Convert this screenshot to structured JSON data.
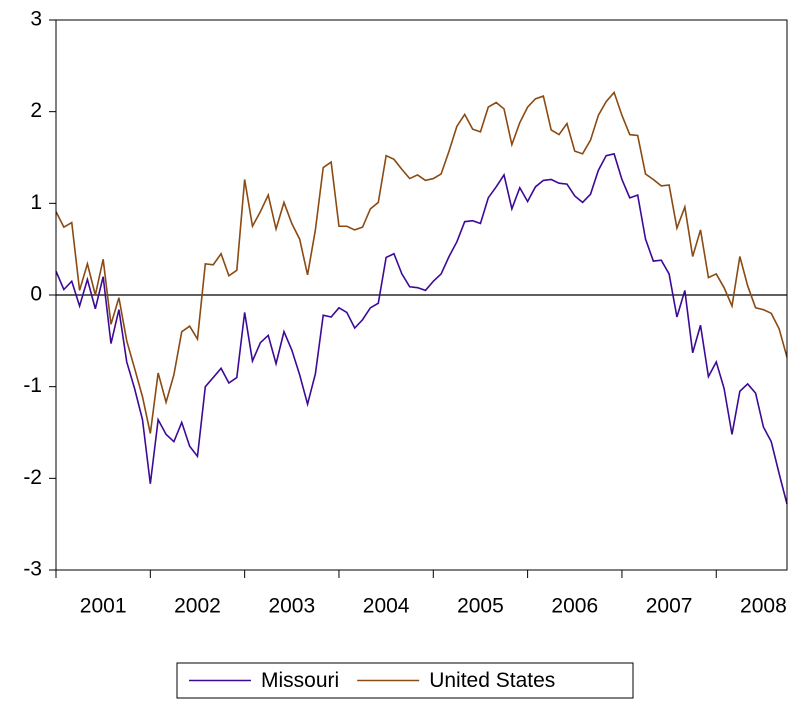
{
  "chart_data": {
    "type": "line",
    "x": [
      2001,
      2001.083,
      2001.167,
      2001.25,
      2001.333,
      2001.417,
      2001.5,
      2001.583,
      2001.667,
      2001.75,
      2001.833,
      2001.917,
      2002,
      2002.083,
      2002.167,
      2002.25,
      2002.333,
      2002.417,
      2002.5,
      2002.583,
      2002.667,
      2002.75,
      2002.833,
      2002.917,
      2003,
      2003.083,
      2003.167,
      2003.25,
      2003.333,
      2003.417,
      2003.5,
      2003.583,
      2003.667,
      2003.75,
      2003.833,
      2003.917,
      2004,
      2004.083,
      2004.167,
      2004.25,
      2004.333,
      2004.417,
      2004.5,
      2004.583,
      2004.667,
      2004.75,
      2004.833,
      2004.917,
      2005,
      2005.083,
      2005.167,
      2005.25,
      2005.333,
      2005.417,
      2005.5,
      2005.583,
      2005.667,
      2005.75,
      2005.833,
      2005.917,
      2006,
      2006.083,
      2006.167,
      2006.25,
      2006.333,
      2006.417,
      2006.5,
      2006.583,
      2006.667,
      2006.75,
      2006.833,
      2006.917,
      2007,
      2007.083,
      2007.167,
      2007.25,
      2007.333,
      2007.417,
      2007.5,
      2007.583,
      2007.667,
      2007.75,
      2007.833,
      2007.917,
      2008,
      2008.083,
      2008.167,
      2008.25,
      2008.333,
      2008.417,
      2008.5,
      2008.583,
      2008.667,
      2008.75
    ],
    "series": [
      {
        "name": "Missouri",
        "color": "#3c0a96",
        "values": [
          0.26,
          0.06,
          0.15,
          -0.12,
          0.17,
          -0.15,
          0.2,
          -0.53,
          -0.16,
          -0.73,
          -1.02,
          -1.36,
          -2.06,
          -1.36,
          -1.52,
          -1.6,
          -1.39,
          -1.65,
          -1.76,
          -1.0,
          -0.9,
          -0.8,
          -0.96,
          -0.9,
          -0.19,
          -0.72,
          -0.52,
          -0.44,
          -0.75,
          -0.4,
          -0.6,
          -0.87,
          -1.19,
          -0.86,
          -0.22,
          -0.24,
          -0.14,
          -0.19,
          -0.36,
          -0.27,
          -0.14,
          -0.09,
          0.41,
          0.45,
          0.23,
          0.09,
          0.08,
          0.05,
          0.15,
          0.23,
          0.42,
          0.58,
          0.8,
          0.81,
          0.78,
          1.06,
          1.18,
          1.31,
          0.94,
          1.17,
          1.02,
          1.18,
          1.25,
          1.26,
          1.22,
          1.21,
          1.08,
          1.01,
          1.1,
          1.36,
          1.52,
          1.54,
          1.26,
          1.06,
          1.09,
          0.61,
          0.37,
          0.38,
          0.23,
          -0.24,
          0.05,
          -0.63,
          -0.33,
          -0.89,
          -0.73,
          -1.02,
          -1.52,
          -1.05,
          -0.97,
          -1.07,
          -1.44,
          -1.6,
          -1.95,
          -2.28
        ]
      },
      {
        "name": "United States",
        "color": "#8b4a12",
        "values": [
          0.91,
          0.74,
          0.79,
          0.05,
          0.34,
          0.0,
          0.39,
          -0.32,
          -0.03,
          -0.5,
          -0.8,
          -1.11,
          -1.51,
          -0.85,
          -1.17,
          -0.87,
          -0.4,
          -0.34,
          -0.48,
          0.34,
          0.33,
          0.45,
          0.21,
          0.27,
          1.26,
          0.75,
          0.91,
          1.09,
          0.72,
          1.01,
          0.78,
          0.61,
          0.22,
          0.71,
          1.39,
          1.45,
          0.75,
          0.75,
          0.71,
          0.74,
          0.94,
          1.01,
          1.52,
          1.48,
          1.37,
          1.27,
          1.31,
          1.25,
          1.27,
          1.32,
          1.57,
          1.84,
          1.97,
          1.81,
          1.78,
          2.05,
          2.1,
          2.03,
          1.64,
          1.88,
          2.05,
          2.14,
          2.17,
          1.8,
          1.75,
          1.87,
          1.57,
          1.54,
          1.69,
          1.96,
          2.11,
          2.21,
          1.96,
          1.75,
          1.74,
          1.32,
          1.26,
          1.19,
          1.2,
          0.73,
          0.96,
          0.42,
          0.71,
          0.19,
          0.23,
          0.08,
          -0.12,
          0.42,
          0.1,
          -0.14,
          -0.16,
          -0.2,
          -0.37,
          -0.68
        ]
      }
    ],
    "xlim": [
      2001,
      2008.75
    ],
    "xticks": [
      2001,
      2002,
      2003,
      2004,
      2005,
      2006,
      2007,
      2008
    ],
    "ylim": [
      -3,
      3
    ],
    "yticks": [
      -3,
      -2,
      -1,
      0,
      1,
      2,
      3
    ],
    "legend": "bottom"
  }
}
